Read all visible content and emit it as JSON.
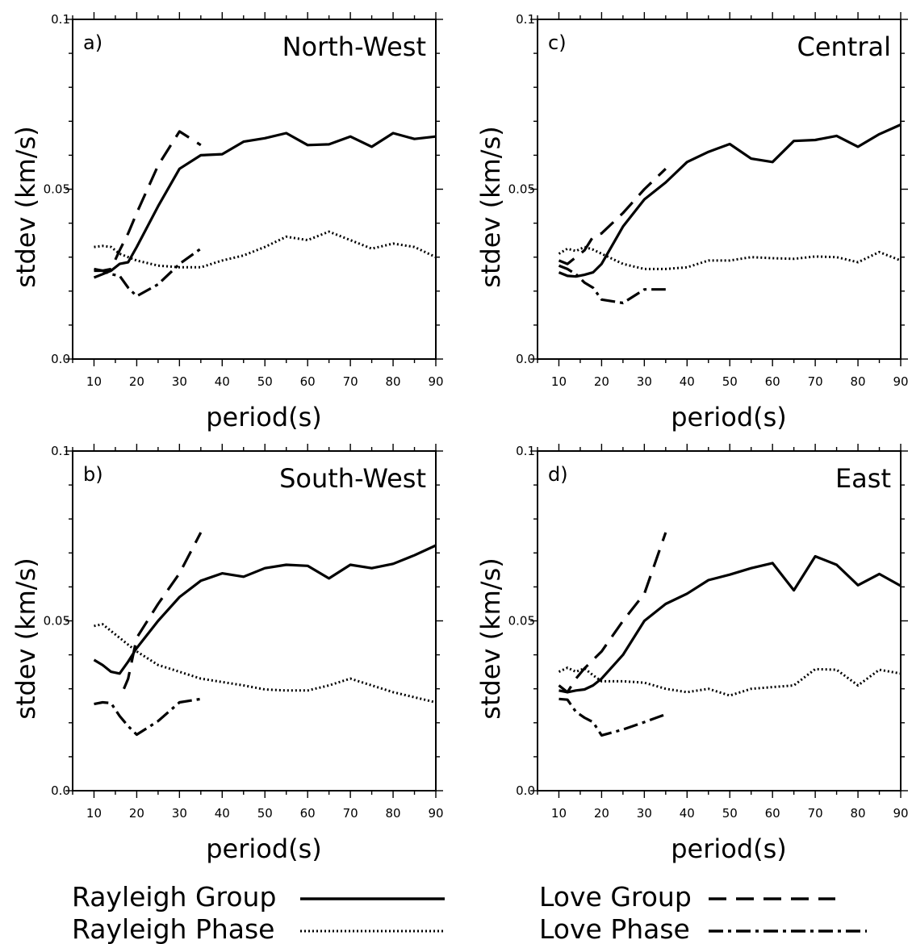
{
  "chart_data": [
    {
      "type": "line",
      "panel": "a)",
      "region": "North-West",
      "xlabel": "period(s)",
      "ylabel": "stdev (km/s)",
      "xlim": [
        5,
        90
      ],
      "ylim": [
        0.0,
        0.1
      ],
      "xticks": [
        10,
        20,
        30,
        40,
        50,
        60,
        70,
        80,
        90
      ],
      "yticks": [
        "0.0",
        "0.05",
        "0.1"
      ],
      "series": [
        {
          "name": "Rayleigh Group",
          "style": "solid",
          "x": [
            10,
            12,
            14,
            16,
            18,
            20,
            25,
            30,
            35,
            40,
            45,
            50,
            55,
            60,
            65,
            70,
            75,
            80,
            85,
            90
          ],
          "y": [
            0.024,
            0.025,
            0.026,
            0.028,
            0.0285,
            0.033,
            0.045,
            0.056,
            0.06,
            0.0603,
            0.064,
            0.065,
            0.0665,
            0.063,
            0.0632,
            0.0655,
            0.0625,
            0.0665,
            0.0648,
            0.0655
          ]
        },
        {
          "name": "Rayleigh Phase",
          "style": "dotted",
          "x": [
            10,
            12,
            14,
            16,
            18,
            20,
            25,
            30,
            35,
            40,
            45,
            50,
            55,
            60,
            65,
            70,
            75,
            80,
            85,
            90
          ],
          "y": [
            0.033,
            0.0333,
            0.033,
            0.031,
            0.03,
            0.029,
            0.0275,
            0.027,
            0.027,
            0.029,
            0.0305,
            0.033,
            0.036,
            0.035,
            0.0375,
            0.035,
            0.0325,
            0.034,
            0.033,
            0.03
          ]
        },
        {
          "name": "Love Group",
          "style": "dashed",
          "x": [
            10,
            12,
            14,
            16,
            18,
            20,
            25,
            30,
            35
          ],
          "y": [
            0.026,
            0.026,
            0.0265,
            0.032,
            0.037,
            0.043,
            0.057,
            0.067,
            0.063
          ]
        },
        {
          "name": "Love Phase",
          "style": "dashdot",
          "x": [
            10,
            12,
            14,
            16,
            18,
            20,
            25,
            30,
            35
          ],
          "y": [
            0.0265,
            0.026,
            0.025,
            0.0245,
            0.021,
            0.0185,
            0.022,
            0.028,
            0.0325
          ]
        }
      ]
    },
    {
      "type": "line",
      "panel": "c)",
      "region": "Central",
      "xlabel": "period(s)",
      "ylabel": "stdev (km/s)",
      "xlim": [
        5,
        90
      ],
      "ylim": [
        0.0,
        0.1
      ],
      "xticks": [
        10,
        20,
        30,
        40,
        50,
        60,
        70,
        80,
        90
      ],
      "yticks": [
        "0.0",
        "0.05",
        "0.1"
      ],
      "series": [
        {
          "name": "Rayleigh Group",
          "style": "solid",
          "x": [
            10,
            12,
            14,
            16,
            18,
            20,
            25,
            30,
            35,
            40,
            45,
            50,
            55,
            60,
            65,
            70,
            75,
            80,
            85,
            90
          ],
          "y": [
            0.0255,
            0.0245,
            0.0243,
            0.0248,
            0.0255,
            0.028,
            0.039,
            0.047,
            0.052,
            0.058,
            0.061,
            0.0633,
            0.059,
            0.058,
            0.0642,
            0.0645,
            0.0657,
            0.0625,
            0.0662,
            0.069
          ]
        },
        {
          "name": "Rayleigh Phase",
          "style": "dotted",
          "x": [
            10,
            12,
            14,
            16,
            18,
            20,
            25,
            30,
            35,
            40,
            45,
            50,
            55,
            60,
            65,
            70,
            75,
            80,
            85,
            90
          ],
          "y": [
            0.031,
            0.0325,
            0.0318,
            0.033,
            0.0322,
            0.031,
            0.028,
            0.0265,
            0.0265,
            0.027,
            0.029,
            0.029,
            0.03,
            0.0297,
            0.0295,
            0.0302,
            0.03,
            0.0285,
            0.0315,
            0.029
          ]
        },
        {
          "name": "Love Group",
          "style": "dashed",
          "x": [
            10,
            12,
            14,
            16,
            18,
            20,
            25,
            30,
            35
          ],
          "y": [
            0.029,
            0.028,
            0.03,
            0.032,
            0.036,
            0.037,
            0.043,
            0.05,
            0.056
          ]
        },
        {
          "name": "Love Phase",
          "style": "dashdot",
          "x": [
            10,
            12,
            14,
            16,
            18,
            20,
            25,
            30,
            35
          ],
          "y": [
            0.0275,
            0.0265,
            0.025,
            0.0225,
            0.021,
            0.0175,
            0.0165,
            0.0205,
            0.0205
          ]
        }
      ]
    },
    {
      "type": "line",
      "panel": "b)",
      "region": "South-West",
      "xlabel": "period(s)",
      "ylabel": "stdev (km/s)",
      "xlim": [
        5,
        90
      ],
      "ylim": [
        0.0,
        0.1
      ],
      "xticks": [
        10,
        20,
        30,
        40,
        50,
        60,
        70,
        80,
        90
      ],
      "yticks": [
        "0.0",
        "0.05",
        "0.1"
      ],
      "series": [
        {
          "name": "Rayleigh Group",
          "style": "solid",
          "x": [
            10,
            12,
            14,
            16,
            18,
            20,
            25,
            30,
            35,
            40,
            45,
            50,
            55,
            60,
            65,
            70,
            75,
            80,
            85,
            90
          ],
          "y": [
            0.0385,
            0.037,
            0.035,
            0.0345,
            0.038,
            0.042,
            0.05,
            0.057,
            0.0618,
            0.064,
            0.063,
            0.0655,
            0.0665,
            0.0662,
            0.0625,
            0.0665,
            0.0655,
            0.0668,
            0.0693,
            0.0722
          ]
        },
        {
          "name": "Rayleigh Phase",
          "style": "dotted",
          "x": [
            10,
            12,
            14,
            16,
            18,
            20,
            25,
            30,
            35,
            40,
            45,
            50,
            55,
            60,
            65,
            70,
            75,
            80,
            85,
            90
          ],
          "y": [
            0.0485,
            0.049,
            0.047,
            0.045,
            0.043,
            0.041,
            0.037,
            0.035,
            0.033,
            0.032,
            0.031,
            0.0298,
            0.0295,
            0.0295,
            0.031,
            0.033,
            0.031,
            0.029,
            0.0275,
            0.026
          ]
        },
        {
          "name": "Love Group",
          "style": "dashed",
          "x": [
            17,
            18,
            20,
            25,
            30,
            35
          ],
          "y": [
            0.03,
            0.033,
            0.045,
            0.055,
            0.064,
            0.076
          ]
        },
        {
          "name": "Love Phase",
          "style": "dashdot",
          "x": [
            10,
            12,
            14,
            16,
            18,
            20,
            25,
            30,
            35
          ],
          "y": [
            0.0255,
            0.026,
            0.0258,
            0.022,
            0.019,
            0.0165,
            0.0205,
            0.026,
            0.027
          ]
        }
      ]
    },
    {
      "type": "line",
      "panel": "d)",
      "region": "East",
      "xlabel": "period(s)",
      "ylabel": "stdev (km/s)",
      "xlim": [
        5,
        90
      ],
      "ylim": [
        0.0,
        0.1
      ],
      "xticks": [
        10,
        20,
        30,
        40,
        50,
        60,
        70,
        80,
        90
      ],
      "yticks": [
        "0.0",
        "0.05",
        "0.1"
      ],
      "series": [
        {
          "name": "Rayleigh Group",
          "style": "solid",
          "x": [
            10,
            12,
            14,
            16,
            18,
            20,
            25,
            30,
            35,
            40,
            45,
            50,
            55,
            60,
            65,
            70,
            75,
            80,
            85,
            90
          ],
          "y": [
            0.0295,
            0.029,
            0.0295,
            0.0298,
            0.031,
            0.033,
            0.04,
            0.05,
            0.055,
            0.058,
            0.062,
            0.0636,
            0.0655,
            0.067,
            0.059,
            0.069,
            0.0665,
            0.0605,
            0.0638,
            0.0603
          ]
        },
        {
          "name": "Rayleigh Phase",
          "style": "dotted",
          "x": [
            10,
            12,
            14,
            16,
            18,
            20,
            25,
            30,
            35,
            40,
            45,
            50,
            55,
            60,
            65,
            70,
            75,
            80,
            85,
            90
          ],
          "y": [
            0.035,
            0.0362,
            0.035,
            0.036,
            0.034,
            0.0322,
            0.0322,
            0.0318,
            0.03,
            0.029,
            0.03,
            0.028,
            0.03,
            0.0305,
            0.031,
            0.0358,
            0.0356,
            0.031,
            0.0356,
            0.0345
          ]
        },
        {
          "name": "Love Group",
          "style": "dashed",
          "x": [
            10,
            12,
            14,
            16,
            18,
            20,
            25,
            30,
            35
          ],
          "y": [
            0.031,
            0.029,
            0.033,
            0.036,
            0.0385,
            0.041,
            0.05,
            0.058,
            0.076
          ]
        },
        {
          "name": "Love Phase",
          "style": "dashdot",
          "x": [
            10,
            12,
            14,
            16,
            18,
            20,
            25,
            30,
            35
          ],
          "y": [
            0.027,
            0.0268,
            0.0232,
            0.0215,
            0.0202,
            0.0163,
            0.018,
            0.0202,
            0.0225
          ]
        }
      ]
    }
  ],
  "legend": [
    {
      "label": "Rayleigh Group",
      "style": "solid"
    },
    {
      "label": "Rayleigh Phase",
      "style": "dotted"
    },
    {
      "label": "Love Group",
      "style": "dashed"
    },
    {
      "label": "Love Phase",
      "style": "dashdot"
    }
  ]
}
